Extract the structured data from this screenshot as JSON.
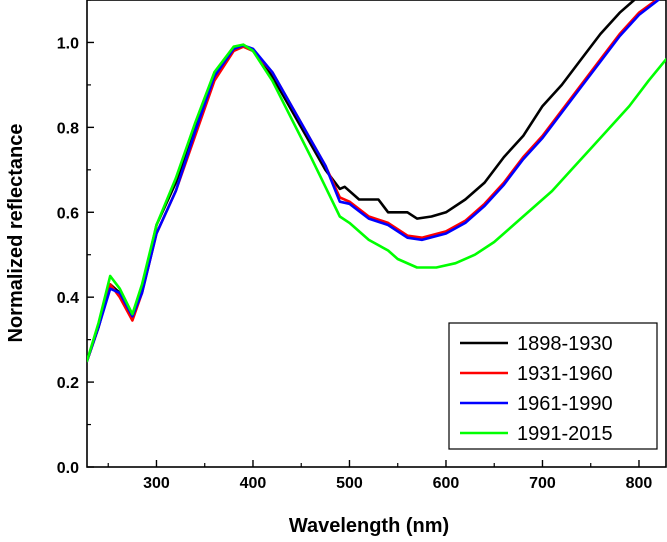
{
  "chart_data": {
    "type": "line",
    "title": "",
    "xlabel": "Wavelength (nm)",
    "ylabel": "Normalized reflectance",
    "xlim": [
      228,
      828
    ],
    "ylim": [
      0.0,
      1.1
    ],
    "x_ticks": [
      300,
      400,
      500,
      600,
      700,
      800
    ],
    "y_ticks": [
      0.0,
      0.2,
      0.4,
      0.6,
      0.8,
      1.0
    ],
    "x_tick_labels": [
      "300",
      "400",
      "500",
      "600",
      "700",
      "800"
    ],
    "y_tick_labels": [
      "0.0",
      "0.2",
      "0.4",
      "0.6",
      "0.8",
      "1.0"
    ],
    "grid": false,
    "legend_position": "bottom-right",
    "series": [
      {
        "name": "1898-1930",
        "color": "#000000",
        "points": [
          [
            228,
            0.25
          ],
          [
            240,
            0.33
          ],
          [
            252,
            0.43
          ],
          [
            262,
            0.41
          ],
          [
            275,
            0.355
          ],
          [
            285,
            0.42
          ],
          [
            300,
            0.57
          ],
          [
            320,
            0.67
          ],
          [
            340,
            0.8
          ],
          [
            360,
            0.92
          ],
          [
            380,
            0.985
          ],
          [
            390,
            0.992
          ],
          [
            400,
            0.98
          ],
          [
            420,
            0.92
          ],
          [
            440,
            0.84
          ],
          [
            460,
            0.76
          ],
          [
            475,
            0.7
          ],
          [
            490,
            0.655
          ],
          [
            495,
            0.66
          ],
          [
            510,
            0.63
          ],
          [
            530,
            0.63
          ],
          [
            540,
            0.6
          ],
          [
            560,
            0.6
          ],
          [
            570,
            0.585
          ],
          [
            585,
            0.59
          ],
          [
            600,
            0.6
          ],
          [
            620,
            0.63
          ],
          [
            640,
            0.67
          ],
          [
            660,
            0.73
          ],
          [
            680,
            0.78
          ],
          [
            700,
            0.85
          ],
          [
            720,
            0.9
          ],
          [
            740,
            0.96
          ],
          [
            760,
            1.02
          ],
          [
            780,
            1.07
          ],
          [
            795,
            1.1
          ]
        ]
      },
      {
        "name": "1931-1960",
        "color": "#ff0000",
        "points": [
          [
            228,
            0.25
          ],
          [
            240,
            0.33
          ],
          [
            252,
            0.43
          ],
          [
            262,
            0.4
          ],
          [
            275,
            0.345
          ],
          [
            285,
            0.41
          ],
          [
            300,
            0.55
          ],
          [
            320,
            0.65
          ],
          [
            340,
            0.78
          ],
          [
            360,
            0.91
          ],
          [
            380,
            0.98
          ],
          [
            390,
            0.99
          ],
          [
            400,
            0.98
          ],
          [
            420,
            0.93
          ],
          [
            440,
            0.85
          ],
          [
            460,
            0.77
          ],
          [
            475,
            0.71
          ],
          [
            490,
            0.635
          ],
          [
            500,
            0.625
          ],
          [
            520,
            0.59
          ],
          [
            540,
            0.575
          ],
          [
            560,
            0.545
          ],
          [
            575,
            0.54
          ],
          [
            600,
            0.555
          ],
          [
            620,
            0.58
          ],
          [
            640,
            0.62
          ],
          [
            660,
            0.67
          ],
          [
            680,
            0.73
          ],
          [
            700,
            0.78
          ],
          [
            720,
            0.84
          ],
          [
            740,
            0.9
          ],
          [
            760,
            0.96
          ],
          [
            780,
            1.02
          ],
          [
            800,
            1.07
          ],
          [
            818,
            1.1
          ]
        ]
      },
      {
        "name": "1961-1990",
        "color": "#0000ff",
        "points": [
          [
            228,
            0.25
          ],
          [
            240,
            0.33
          ],
          [
            252,
            0.42
          ],
          [
            262,
            0.41
          ],
          [
            275,
            0.355
          ],
          [
            285,
            0.41
          ],
          [
            300,
            0.55
          ],
          [
            320,
            0.65
          ],
          [
            340,
            0.79
          ],
          [
            360,
            0.92
          ],
          [
            380,
            0.985
          ],
          [
            390,
            0.993
          ],
          [
            400,
            0.985
          ],
          [
            420,
            0.93
          ],
          [
            440,
            0.85
          ],
          [
            460,
            0.77
          ],
          [
            475,
            0.71
          ],
          [
            490,
            0.625
          ],
          [
            500,
            0.62
          ],
          [
            520,
            0.585
          ],
          [
            540,
            0.57
          ],
          [
            560,
            0.54
          ],
          [
            575,
            0.535
          ],
          [
            600,
            0.55
          ],
          [
            620,
            0.575
          ],
          [
            640,
            0.615
          ],
          [
            660,
            0.665
          ],
          [
            680,
            0.725
          ],
          [
            700,
            0.775
          ],
          [
            720,
            0.835
          ],
          [
            740,
            0.895
          ],
          [
            760,
            0.955
          ],
          [
            780,
            1.015
          ],
          [
            800,
            1.065
          ],
          [
            820,
            1.1
          ]
        ]
      },
      {
        "name": "1991-2015",
        "color": "#00ff00",
        "points": [
          [
            228,
            0.25
          ],
          [
            240,
            0.34
          ],
          [
            252,
            0.45
          ],
          [
            262,
            0.42
          ],
          [
            275,
            0.36
          ],
          [
            285,
            0.43
          ],
          [
            300,
            0.57
          ],
          [
            320,
            0.68
          ],
          [
            340,
            0.81
          ],
          [
            360,
            0.93
          ],
          [
            380,
            0.99
          ],
          [
            390,
            0.995
          ],
          [
            400,
            0.98
          ],
          [
            420,
            0.91
          ],
          [
            440,
            0.82
          ],
          [
            460,
            0.73
          ],
          [
            475,
            0.66
          ],
          [
            490,
            0.59
          ],
          [
            500,
            0.575
          ],
          [
            520,
            0.535
          ],
          [
            540,
            0.51
          ],
          [
            550,
            0.49
          ],
          [
            570,
            0.47
          ],
          [
            590,
            0.47
          ],
          [
            610,
            0.48
          ],
          [
            630,
            0.5
          ],
          [
            650,
            0.53
          ],
          [
            670,
            0.57
          ],
          [
            690,
            0.61
          ],
          [
            710,
            0.65
          ],
          [
            730,
            0.7
          ],
          [
            750,
            0.75
          ],
          [
            770,
            0.8
          ],
          [
            790,
            0.85
          ],
          [
            810,
            0.91
          ],
          [
            828,
            0.96
          ]
        ]
      }
    ]
  }
}
